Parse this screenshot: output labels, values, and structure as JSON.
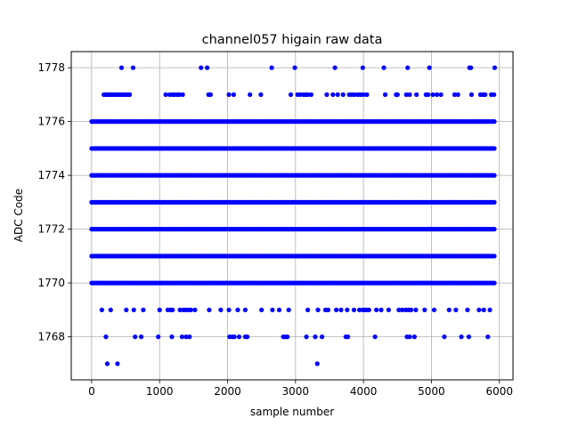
{
  "chart_data": {
    "type": "scatter",
    "title": "channel057 higain raw data",
    "xlabel": "sample number",
    "ylabel": "ADC Code",
    "xlim": [
      -300,
      6200
    ],
    "ylim": [
      1766.4,
      1778.6
    ],
    "xticks": [
      0,
      1000,
      2000,
      3000,
      4000,
      5000,
      6000
    ],
    "yticks": [
      1768,
      1770,
      1772,
      1774,
      1776,
      1778
    ],
    "grid": true,
    "marker_color": "#0000ff",
    "x_extent": [
      0,
      5940
    ],
    "dense_levels": [
      1770,
      1771,
      1772,
      1773,
      1774,
      1775,
      1776
    ],
    "dense_step": 25,
    "sparse_points": {
      "1778": [
        440,
        610,
        1610,
        1700,
        2650,
        2990,
        3580,
        3990,
        4300,
        4650,
        4970,
        5560,
        5580,
        5930
      ],
      "1777": [
        180,
        200,
        230,
        260,
        280,
        300,
        330,
        350,
        370,
        400,
        420,
        450,
        470,
        500,
        530,
        560,
        1090,
        1150,
        1190,
        1220,
        1260,
        1290,
        1340,
        1720,
        1750,
        2020,
        2090,
        2330,
        2490,
        2930,
        3030,
        3070,
        3120,
        3150,
        3180,
        3230,
        3460,
        3550,
        3620,
        3700,
        3790,
        3830,
        3870,
        3920,
        3960,
        4000,
        4050,
        4320,
        4480,
        4500,
        4630,
        4680,
        4780,
        4920,
        4950,
        5020,
        5080,
        5140,
        5340,
        5390,
        5590,
        5720,
        5760,
        5790,
        5880,
        5920
      ],
      "1769": [
        150,
        280,
        510,
        620,
        760,
        1000,
        1120,
        1160,
        1190,
        1300,
        1350,
        1380,
        1420,
        1460,
        1520,
        1730,
        1900,
        2020,
        2150,
        2260,
        2500,
        2660,
        2760,
        2900,
        3180,
        3330,
        3440,
        3480,
        3600,
        3670,
        3760,
        3860,
        3940,
        3990,
        4020,
        4050,
        4080,
        4190,
        4260,
        4370,
        4520,
        4570,
        4620,
        4660,
        4700,
        4770,
        4900,
        5040,
        5260,
        5360,
        5530,
        5700,
        5770,
        5860
      ],
      "1768": [
        210,
        640,
        730,
        980,
        1180,
        1330,
        1390,
        1440,
        2030,
        2070,
        2100,
        2170,
        2260,
        2290,
        2820,
        2850,
        2880,
        3160,
        3290,
        3390,
        3740,
        3770,
        4170,
        4640,
        4680,
        4750,
        5190,
        5440,
        5550,
        5830
      ],
      "1767": [
        230,
        380,
        3320
      ]
    }
  }
}
